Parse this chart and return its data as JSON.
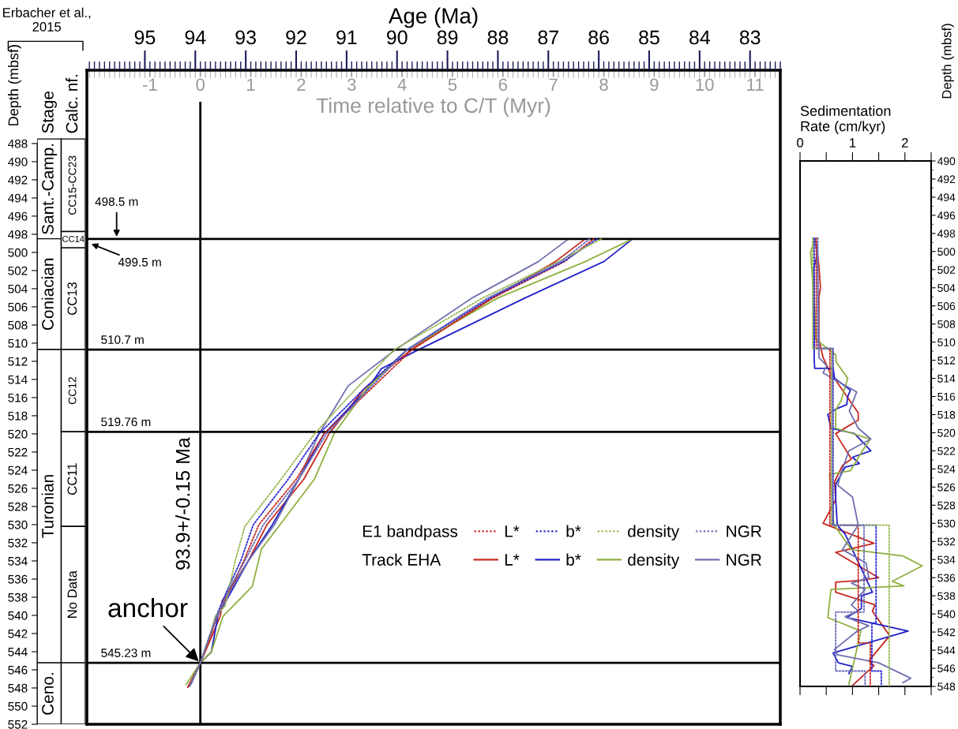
{
  "chart_data": [
    {
      "type": "bar",
      "categories": [
        "Stage",
        "Calc. nf."
      ],
      "ylabel": "Depth (mbsf)",
      "ylim": [
        552,
        487.4
      ],
      "yticks": [
        488,
        490,
        492,
        494,
        496,
        498,
        500,
        502,
        504,
        506,
        508,
        510,
        512,
        514,
        516,
        518,
        520,
        522,
        524,
        526,
        528,
        530,
        532,
        534,
        536,
        538,
        540,
        542,
        544,
        546,
        548,
        550,
        552
      ],
      "annotations": [
        "Erbacher et al.,\n2015"
      ],
      "series": [
        {
          "name": "Sant.-Camp.",
          "color": "#ffffff",
          "values": [
            11,
            null
          ],
          "base": [
            487.5,
            null
          ]
        },
        {
          "name": "Coniacian",
          "color": "#ffffff",
          "values": [
            12.2,
            null
          ],
          "base": [
            498.5,
            null
          ]
        },
        {
          "name": "Turonian",
          "color": "#ffffff",
          "values": [
            34.53,
            null
          ],
          "base": [
            510.7,
            null
          ]
        },
        {
          "name": "Ceno.",
          "color": "#ffffff",
          "values": [
            6.77,
            null
          ],
          "base": [
            545.23,
            null
          ]
        },
        {
          "name": "CC15-CC23",
          "color": "#ffffff",
          "values": [
            null,
            10.2
          ],
          "base": [
            null,
            487.5
          ]
        },
        {
          "name": "CC14",
          "color": "#ffffff",
          "values": [
            null,
            1.8
          ],
          "base": [
            null,
            497.7
          ]
        },
        {
          "name": "CC13",
          "color": "#ffffff",
          "values": [
            null,
            11.2
          ],
          "base": [
            null,
            499.5
          ]
        },
        {
          "name": "CC12",
          "color": "#ffffff",
          "values": [
            null,
            9.06
          ],
          "base": [
            null,
            510.7
          ]
        },
        {
          "name": "CC11",
          "color": "#ffffff",
          "values": [
            null,
            10.44
          ],
          "base": [
            null,
            519.76
          ]
        },
        {
          "name": "No Data",
          "color": "#ffffff",
          "values": [
            null,
            15.03
          ],
          "base": [
            null,
            530.2
          ]
        },
        {
          "color": "#ffffff",
          "values": [
            null,
            6.77
          ],
          "base": [
            null,
            545.23
          ]
        }
      ]
    },
    {
      "type": "line",
      "xlabel": "Time relative to C/T (Myr)",
      "x2label": "Age (Ma)",
      "xlim": [
        -2.25,
        11.5
      ],
      "xticks": [
        -1,
        0,
        1,
        2,
        3,
        4,
        5,
        6,
        7,
        8,
        9,
        10,
        11
      ],
      "x2lim": [
        96.15,
        82.4
      ],
      "x2ticks": [
        95,
        94,
        93,
        92,
        91,
        90,
        89,
        88,
        87,
        86,
        85,
        84,
        83
      ],
      "ylim": [
        552,
        479.9
      ],
      "tick_labels": "x",
      "legend": "bottom right",
      "annotations": [
        "E1 bandpass",
        "Track EHA",
        {
          "text": "498.5 m",
          "x": -1.66,
          "y": 498.5
        },
        "499.5 m",
        {
          "text": "anchor",
          "x": 0,
          "y": 545.23
        }
      ],
      "ref_lines": [
        {
          "axis": "x",
          "value": 0,
          "label": "93.9+/-0.15 Ma"
        },
        {
          "axis": "y",
          "value": 498.5
        },
        {
          "axis": "y",
          "value": 510.7,
          "label": "510.7 m"
        },
        {
          "axis": "y",
          "value": 519.76,
          "label": "519.76 m"
        },
        {
          "axis": "y",
          "value": 545.23,
          "label": "545.23 m"
        }
      ],
      "series": [
        {
          "name": "L*",
          "color": "#c8281e",
          "line_style": "dotted",
          "x": [
            -0.24,
            0,
            0.22,
            0.33,
            0.6,
            0.86,
            1.16,
            1.9,
            2.45,
            3.39,
            4.2,
            5.8,
            7.22,
            7.8
          ],
          "values": [
            547.9,
            545.23,
            542,
            540,
            537,
            534,
            530,
            525,
            520,
            515,
            510.7,
            505,
            501,
            498.5
          ]
        },
        {
          "name": "b*",
          "color": "#2828d0",
          "line_style": "dotted",
          "x": [
            -0.17,
            0,
            0.2,
            0.32,
            0.55,
            0.8,
            1.05,
            1.74,
            2.35,
            3.25,
            4.1,
            5.75,
            7.2,
            7.87
          ],
          "values": [
            547.4,
            545.23,
            542,
            540,
            537,
            534,
            530,
            525,
            520,
            515,
            510.7,
            505,
            501,
            498.5
          ]
        },
        {
          "name": "density",
          "color": "#98b850",
          "line_style": "dotted",
          "x": [
            -0.2,
            0,
            0.2,
            0.3,
            0.49,
            0.69,
            0.88,
            1.6,
            2.26,
            3.09,
            3.85,
            5.6,
            7.1,
            7.95
          ],
          "values": [
            547.7,
            545.23,
            542,
            540,
            539,
            534,
            530.2,
            525,
            520,
            515,
            510.7,
            505,
            501,
            498.5
          ]
        },
        {
          "name": "NGR",
          "color": "#6a6ab8",
          "line_style": "dotted",
          "x": [
            -0.21,
            0,
            0.2,
            0.33,
            0.58,
            0.88,
            1.25,
            1.95,
            2.5,
            3.35,
            4.1,
            5.7,
            7.15,
            7.72
          ],
          "values": [
            547.8,
            545.23,
            542,
            540,
            537,
            534,
            530,
            525,
            520,
            515,
            510.7,
            505,
            501,
            498.5
          ]
        },
        {
          "name": "L*",
          "color": "#c8281e",
          "line_style": "solid",
          "x": [
            -0.25,
            0,
            0.25,
            0.4,
            0.43,
            0.95,
            1.32,
            2.05,
            2.55,
            3.25,
            4.18,
            5.8,
            7.04,
            7.63
          ],
          "values": [
            547.9,
            545.23,
            542,
            540,
            538.4,
            534,
            530,
            525,
            520,
            515,
            510.7,
            505,
            501,
            498.5
          ]
        },
        {
          "name": "b*",
          "color": "#2020c8",
          "line_style": "solid",
          "x": [
            -0.2,
            0,
            0.22,
            0.35,
            0.65,
            0.95,
            1.43,
            1.95,
            2.45,
            3.32,
            3.59,
            4.33,
            6.44,
            8.0,
            8.57
          ],
          "values": [
            547.7,
            545.23,
            544,
            540,
            537,
            534,
            530,
            525,
            520,
            515,
            512.8,
            510.7,
            505,
            501,
            498.5
          ]
        },
        {
          "name": "density",
          "color": "#90b040",
          "line_style": "solid",
          "x": [
            -0.28,
            0,
            0.22,
            0.45,
            1.03,
            1.21,
            1.58,
            2.26,
            2.65,
            3.3,
            4.1,
            5.9,
            7.63,
            8.57
          ],
          "values": [
            547.6,
            545.23,
            544,
            540.1,
            536.8,
            532.7,
            530,
            525,
            520,
            515,
            510.7,
            505,
            501,
            498.5
          ]
        },
        {
          "name": "NGR",
          "color": "#7070b0",
          "line_style": "solid",
          "x": [
            -0.22,
            0,
            0.2,
            0.35,
            0.62,
            0.95,
            1.47,
            1.95,
            2.35,
            2.93,
            3.87,
            5.39,
            6.7,
            7.3
          ],
          "values": [
            547.7,
            545.23,
            542,
            540,
            537,
            534,
            530,
            525,
            520,
            514.7,
            510.7,
            505,
            501,
            498.5
          ]
        }
      ]
    },
    {
      "type": "line",
      "xlabel": "Sedimentation\nRate (cm/kyr)",
      "ylabel": "Depth (mbsf)",
      "xlim": [
        0,
        2.5
      ],
      "xticks": [
        0,
        {
          "value": 0.5,
          "label": null
        },
        1,
        {
          "value": 1.5,
          "label": null
        },
        2,
        {
          "value": 2.5,
          "label": null
        }
      ],
      "ylim": [
        548,
        490
      ],
      "yticks": [
        490,
        492,
        494,
        496,
        498,
        500,
        502,
        504,
        506,
        508,
        510,
        512,
        514,
        516,
        518,
        520,
        522,
        524,
        526,
        528,
        530,
        532,
        534,
        536,
        538,
        540,
        542,
        544,
        546,
        548
      ],
      "series": [
        {
          "color": "#c8281e",
          "line_style": "dotted",
          "x": [
            0.31,
            0.31,
            0.57,
            0.57,
            1.11,
            1.11,
            1.34,
            1.34
          ],
          "values": [
            498.5,
            510.7,
            510.7,
            530.2,
            530.2,
            543.2,
            543.2,
            548
          ]
        },
        {
          "color": "#2828d0",
          "line_style": "dotted",
          "x": [
            0.27,
            0.27,
            0.63,
            0.63,
            1.45,
            1.45,
            1.37,
            1.37,
            1.55,
            1.55
          ],
          "values": [
            498.5,
            510.7,
            510.7,
            530.2,
            530.2,
            541,
            541,
            546.3,
            546.3,
            548
          ]
        },
        {
          "color": "#98b850",
          "line_style": "dotted",
          "x": [
            0.24,
            0.24,
            0.6,
            0.6,
            1.7,
            1.7
          ],
          "values": [
            498.5,
            510.7,
            510.7,
            530.2,
            530.2,
            548
          ]
        },
        {
          "color": "#6a6ab8",
          "line_style": "dotted",
          "x": [
            0.34,
            0.34,
            0.62,
            0.62,
            1.22,
            1.22,
            0.68,
            0.68,
            1.24,
            1.24
          ],
          "values": [
            498.5,
            510.7,
            510.7,
            530.2,
            530.2,
            539.8,
            539.8,
            546.3,
            546.3,
            548
          ]
        },
        {
          "color": "#c8281e",
          "line_style": "solid",
          "x": [
            0.3,
            0.36,
            0.39,
            0.36,
            0.36,
            0.44,
            0.56,
            1.11,
            1.11,
            0.68,
            0.98,
            0.81,
            0.66,
            0.68,
            0.44,
            1.41,
            0.68,
            1.5,
            1.16,
            0.68,
            0.68,
            1.43,
            1.38,
            1.71,
            1.31,
            1.41,
            1.0
          ],
          "values": [
            498.6,
            501.6,
            504,
            505,
            509.7,
            511.7,
            513.2,
            517.8,
            518.6,
            520.1,
            522.9,
            523.6,
            525.4,
            527.4,
            530,
            532.2,
            533.2,
            536,
            536.3,
            536.5,
            537.6,
            539,
            539.7,
            542.4,
            545.2,
            545.7,
            547.9
          ]
        },
        {
          "color": "#2020c8",
          "line_style": "solid",
          "x": [
            0.28,
            0.33,
            0.26,
            0.27,
            0.28,
            0.63,
            0.66,
            0.96,
            0.91,
            0.89,
            0.68,
            0.53,
            0.59,
            1.04,
            1.35,
            1.0,
            1.13,
            0.86,
            0.68,
            0.68,
            0.71,
            0.86,
            1.38,
            1.17,
            1.17,
            0.89,
            2.06,
            0.63,
            0.73,
            1.0,
            0.93
          ],
          "values": [
            498.6,
            500.3,
            501.9,
            512.0,
            512.9,
            512.9,
            514.0,
            515.3,
            516,
            516.9,
            517.4,
            518,
            519.5,
            520.1,
            522,
            522.7,
            523.4,
            523.8,
            525.7,
            527.3,
            530.2,
            531.2,
            537.6,
            538,
            539.4,
            540.4,
            541.9,
            544.3,
            545.4,
            545.8,
            546.6
          ]
        },
        {
          "color": "#90b040",
          "line_style": "solid",
          "x": [
            0.28,
            0.2,
            0.28,
            0.3,
            0.68,
            0.69,
            0.91,
            0.78,
            0.68,
            0.68,
            1.34,
            1.2,
            0.96,
            0.56,
            0.62,
            0.64,
            0.98,
            1.96,
            2.33,
            1.76,
            1.98,
            0.59,
            0.53,
            1.16,
            0.93
          ],
          "values": [
            498.6,
            500.1,
            506.2,
            509.7,
            511.4,
            512.2,
            514,
            516.5,
            517.5,
            519.5,
            520.7,
            521.9,
            524.2,
            524.6,
            527.3,
            530.1,
            532.9,
            533.6,
            534.7,
            536.4,
            536.9,
            537.3,
            540.4,
            541.9,
            547.8
          ]
        },
        {
          "color": "#7070b0",
          "line_style": "solid",
          "x": [
            0.28,
            0.33,
            0.36,
            0.36,
            0.51,
            0.44,
            1.08,
            0.94,
            1.11,
            1.35,
            0.93,
            0.78,
            0.72,
            1.0,
            1.11,
            0.81,
            1.26,
            1.31,
            0.98,
            1.24,
            0.98,
            1.11,
            0.86,
            1.31,
            1.09,
            0.66,
            0.71,
            1.5,
            2.11,
            1.96
          ],
          "values": [
            498.6,
            500.1,
            510.3,
            511.7,
            512.6,
            513.4,
            515.5,
            517.6,
            519.5,
            520.7,
            522,
            524.5,
            525.8,
            527.1,
            530.2,
            532.9,
            534.4,
            536,
            536.6,
            537.3,
            539,
            539.7,
            540.3,
            541.3,
            541.9,
            543.9,
            544.5,
            545.4,
            547.1,
            547.6
          ]
        }
      ]
    }
  ]
}
